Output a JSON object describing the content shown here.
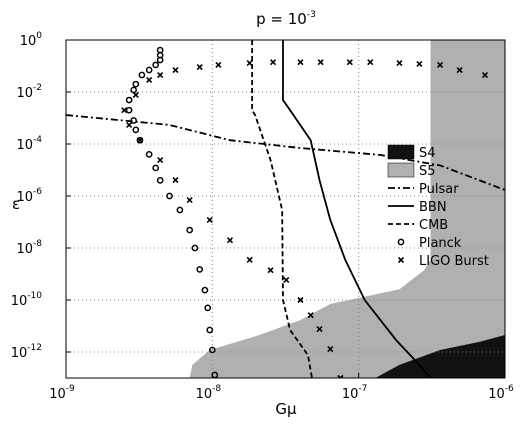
{
  "chart_data": {
    "type": "line",
    "title": "p = 10",
    "title_exponent": "-3",
    "xlabel": "Gμ",
    "ylabel": "ε",
    "xscale": "log",
    "yscale": "log",
    "grid": true,
    "legend_position": "east",
    "xlim": [
      1e-09,
      1e-06
    ],
    "ylim": [
      1e-13,
      1
    ],
    "xticks": [
      {
        "value": 1e-09,
        "label": "10",
        "exponent": "-9"
      },
      {
        "value": 1e-08,
        "label": "10",
        "exponent": "-8"
      },
      {
        "value": 1e-07,
        "label": "10",
        "exponent": "-7"
      },
      {
        "value": 1e-06,
        "label": "10",
        "exponent": "-6"
      }
    ],
    "yticks": [
      {
        "value": 1,
        "label": "10",
        "exponent": "0"
      },
      {
        "value": 0.01,
        "label": "10",
        "exponent": "-2"
      },
      {
        "value": 0.0001,
        "label": "10",
        "exponent": "-4"
      },
      {
        "value": 1e-06,
        "label": "10",
        "exponent": "-6"
      },
      {
        "value": 1e-08,
        "label": "10",
        "exponent": "-8"
      },
      {
        "value": 1e-10,
        "label": "10",
        "exponent": "-10"
      },
      {
        "value": 1e-12,
        "label": "10",
        "exponent": "-12"
      }
    ],
    "series": [
      {
        "name": "S5",
        "kind": "area",
        "color": "#b0b0b0",
        "x": [
          3.1e-07,
          1e-06,
          1e-06,
          7e-09,
          7.3e-09,
          9.6e-09,
          2.1e-08,
          4e-08,
          6.4e-08,
          1.9e-07,
          2.8e-07,
          3.1e-07
        ],
        "values": [
          1,
          1,
          1e-13,
          1e-13,
          3.2e-13,
          1.2e-12,
          4.5e-12,
          1.7e-11,
          7e-11,
          2.6e-10,
          1.4e-09,
          3.5e-09
        ]
      },
      {
        "name": "S4",
        "kind": "area",
        "color": "#111111",
        "x": [
          1.3e-07,
          1e-06,
          1e-06,
          6.8e-07,
          3.6e-07,
          1.9e-07,
          1.3e-07
        ],
        "values": [
          1e-13,
          1e-13,
          4.5e-12,
          2.5e-12,
          1.2e-12,
          3.2e-13,
          1e-13
        ]
      },
      {
        "name": "Pulsar",
        "kind": "line",
        "dash": "dashdot",
        "color": "#000000",
        "x": [
          1e-09,
          5.1e-09,
          1.32e-08,
          4e-08,
          1.4e-07,
          3.6e-07,
          1e-06
        ],
        "values": [
          0.0013,
          0.00054,
          0.00014,
          7e-05,
          3.8e-05,
          1.5e-05,
          1.7e-06
        ]
      },
      {
        "name": "BBN",
        "kind": "line",
        "dash": "solid",
        "color": "#000000",
        "x": [
          3.04e-08,
          3.04e-08,
          3.4e-08,
          4.7e-08,
          5.4e-08,
          6.4e-08,
          8.1e-08,
          1.1e-07,
          1.8e-07,
          2.6e-07,
          3.1e-07
        ],
        "values": [
          1,
          0.0049,
          0.002,
          0.00014,
          4.1e-06,
          1.2e-07,
          3.5e-09,
          1e-10,
          2.9e-12,
          3.2e-13,
          1e-13
        ]
      },
      {
        "name": "CMB",
        "kind": "line",
        "dash": "dashed",
        "color": "#000000",
        "x": [
          1.87e-08,
          1.87e-08,
          1.96e-08,
          2.5e-08,
          3e-08,
          3.04e-08,
          3.4e-08,
          4.5e-08,
          4.8e-08
        ],
        "values": [
          1,
          0.002,
          0.0013,
          2.4e-05,
          2.9e-07,
          1e-10,
          7e-12,
          7.6e-13,
          1e-13
        ]
      },
      {
        "name": "Planck",
        "kind": "markers",
        "marker": "circle",
        "color": "#000000",
        "x": [
          4.4e-09,
          4.4e-09,
          4.4e-09,
          4.1e-09,
          3.7e-09,
          3.3e-09,
          3e-09,
          2.9e-09,
          2.7e-09,
          2.7e-09,
          2.9e-09,
          3e-09,
          3.2e-09,
          3.7e-09,
          4.1e-09,
          4.4e-09,
          5.1e-09,
          6e-09,
          7e-09,
          7.6e-09,
          8.2e-09,
          8.9e-09,
          9.3e-09,
          9.6e-09,
          1e-08,
          1.04e-08
        ],
        "values": [
          0.41,
          0.26,
          0.17,
          0.11,
          0.07,
          0.045,
          0.02,
          0.012,
          0.0049,
          0.002,
          0.0008,
          0.00035,
          0.00014,
          4e-05,
          1.2e-05,
          4e-06,
          1e-06,
          2.9e-07,
          4.9e-08,
          1e-08,
          1.5e-09,
          2.4e-10,
          5e-11,
          7e-12,
          1.2e-12,
          1.3e-13
        ]
      },
      {
        "name": "LIGO Burst",
        "kind": "markers",
        "marker": "x",
        "color": "#000000",
        "x": [
          4.4e-09,
          5.6e-09,
          8.2e-09,
          1.1e-08,
          1.8e-08,
          2.6e-08,
          4e-08,
          5.5e-08,
          8.7e-08,
          1.2e-07,
          1.9e-07,
          2.6e-07,
          3.6e-07,
          4.9e-07,
          7.3e-07,
          3.7e-09,
          3e-09,
          2.5e-09,
          2.7e-09,
          3.2e-09,
          4.4e-09,
          5.6e-09,
          7e-09,
          9.6e-09,
          1.32e-08,
          1.8e-08,
          2.5e-08,
          3.2e-08,
          4e-08,
          4.7e-08,
          5.4e-08,
          6.4e-08,
          7.5e-08
        ],
        "values": [
          0.045,
          0.07,
          0.091,
          0.11,
          0.13,
          0.14,
          0.14,
          0.14,
          0.14,
          0.14,
          0.13,
          0.12,
          0.11,
          0.07,
          0.045,
          0.029,
          0.0077,
          0.002,
          0.00054,
          0.00014,
          2.4e-05,
          4.1e-06,
          7e-07,
          1.2e-07,
          2e-08,
          3.5e-09,
          1.4e-09,
          5.9e-10,
          1e-10,
          2.6e-11,
          7.6e-12,
          1.3e-12,
          1e-13
        ]
      }
    ]
  }
}
